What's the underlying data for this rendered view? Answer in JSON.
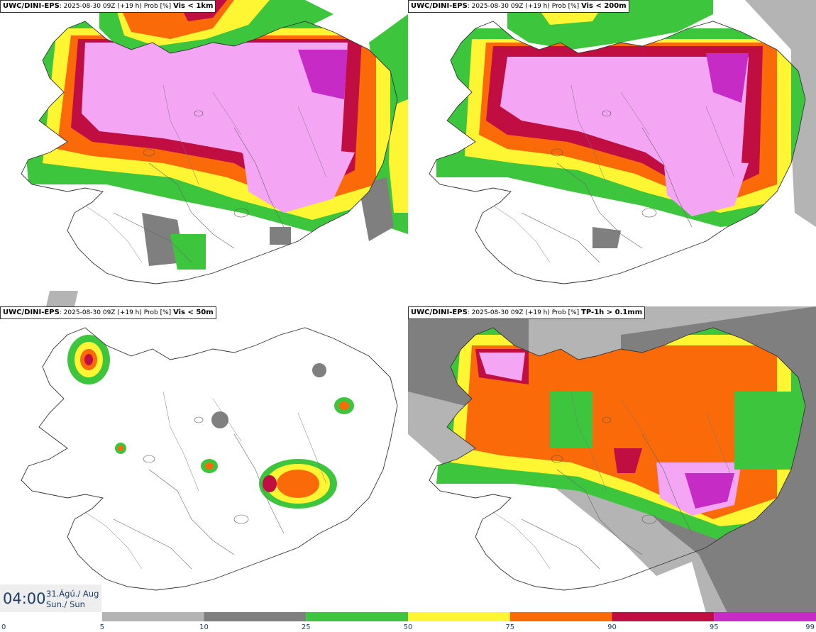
{
  "panels": [
    {
      "model": "UWC/DINI-EPS",
      "info": "2025-08-30 09Z (+19 h) Prob [%]",
      "variable": "Vis < 1km"
    },
    {
      "model": "UWC/DINI-EPS",
      "info": "2025-08-30 09Z (+19 h) Prob [%]",
      "variable": "Vis < 200m"
    },
    {
      "model": "UWC/DINI-EPS",
      "info": "2025-08-30 09Z (+19 h) Prob [%]",
      "variable": "Vis < 50m"
    },
    {
      "model": "UWC/DINI-EPS",
      "info": "2025-08-30 09Z (+19 h) Prob [%]",
      "variable": "TP-1h > 0.1mm"
    }
  ],
  "valid_time": {
    "time": "04:00",
    "date_line1": "31.Ágú./ Aug",
    "date_line2": "Sun./ Sun"
  },
  "colorbar": {
    "labels": [
      "0",
      "5",
      "10",
      "25",
      "50",
      "75",
      "90",
      "95",
      "99"
    ],
    "colors": [
      "#ffffff",
      "#b4b4b4",
      "#7f7f7f",
      "#3ec53e",
      "#fff633",
      "#fb6a08",
      "#c00d42",
      "#c62bc6",
      "#f4a6f4"
    ]
  }
}
